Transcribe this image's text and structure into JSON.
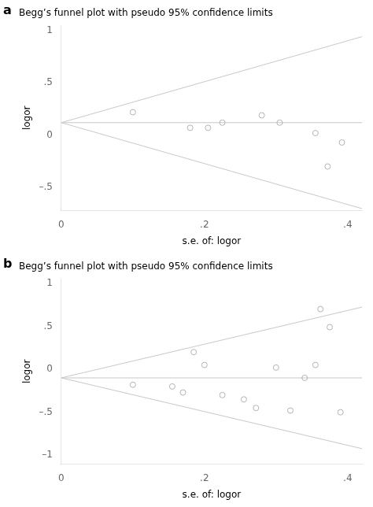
{
  "chart_data": [
    {
      "type": "scatter",
      "title": "Begg’s funnel plot with pseudo 95% confidence limits",
      "annotations": [
        "a"
      ],
      "xlabel": "s.e. of: logor",
      "ylabel": "logor",
      "xlim": [
        0,
        0.42
      ],
      "ylim": [
        -0.72,
        1.05
      ],
      "xticks": [
        0,
        {
          "value": 0.2,
          "label": ".2"
        },
        {
          "value": 0.4,
          "label": ".4"
        }
      ],
      "yticks": [
        {
          "value": -0.5,
          "label": "–.5"
        },
        0,
        {
          "value": 0.5,
          "label": ".5"
        },
        1
      ],
      "grid": false,
      "series": [
        {
          "type": "line",
          "color": "#c8c8c8",
          "x": [
            0,
            0.42
          ],
          "values": [
            0.12,
            0.9432
          ]
        },
        {
          "type": "line",
          "color": "#c8c8c8",
          "x": [
            0,
            0.42
          ],
          "values": [
            0.12,
            -0.7032
          ]
        },
        {
          "type": "line",
          "color": "#c8c8c8",
          "x": [
            0,
            0.42
          ],
          "values": [
            0.12,
            0.12
          ]
        },
        {
          "type": "scatter",
          "color": "#aab4bc",
          "marker": "circle",
          "x": [
            0.1,
            0.18,
            0.205,
            0.225,
            0.28,
            0.305,
            0.355,
            0.372,
            0.392
          ],
          "values": [
            0.22,
            0.07,
            0.07,
            0.12,
            0.19,
            0.12,
            0.02,
            -0.3,
            -0.07
          ]
        }
      ]
    },
    {
      "type": "scatter",
      "title": "Begg’s funnel plot with pseudo 95% confidence limits",
      "annotations": [
        "b"
      ],
      "xlabel": "s.e. of: logor",
      "ylabel": "logor",
      "xlim": [
        0,
        0.42
      ],
      "ylim": [
        -1.1,
        1.05
      ],
      "xticks": [
        0,
        {
          "value": 0.2,
          "label": ".2"
        },
        {
          "value": 0.4,
          "label": ".4"
        }
      ],
      "yticks": [
        {
          "value": -1,
          "label": "–1"
        },
        {
          "value": -0.5,
          "label": "–.5"
        },
        0,
        {
          "value": 0.5,
          "label": ".5"
        },
        1
      ],
      "grid": false,
      "series": [
        {
          "type": "line",
          "color": "#c8c8c8",
          "x": [
            0,
            0.42
          ],
          "values": [
            -0.1,
            0.7232
          ]
        },
        {
          "type": "line",
          "color": "#c8c8c8",
          "x": [
            0,
            0.42
          ],
          "values": [
            -0.1,
            -0.9232
          ]
        },
        {
          "type": "line",
          "color": "#c8c8c8",
          "x": [
            0,
            0.42
          ],
          "values": [
            -0.1,
            -0.1
          ]
        },
        {
          "type": "scatter",
          "color": "#aab4bc",
          "marker": "circle",
          "x": [
            0.1,
            0.155,
            0.17,
            0.185,
            0.2,
            0.225,
            0.255,
            0.272,
            0.3,
            0.32,
            0.34,
            0.355,
            0.362,
            0.375,
            0.39
          ],
          "values": [
            -0.18,
            -0.2,
            -0.27,
            0.2,
            0.05,
            -0.3,
            -0.35,
            -0.45,
            0.02,
            -0.48,
            -0.1,
            0.05,
            0.7,
            0.49,
            -0.5
          ]
        }
      ]
    }
  ]
}
